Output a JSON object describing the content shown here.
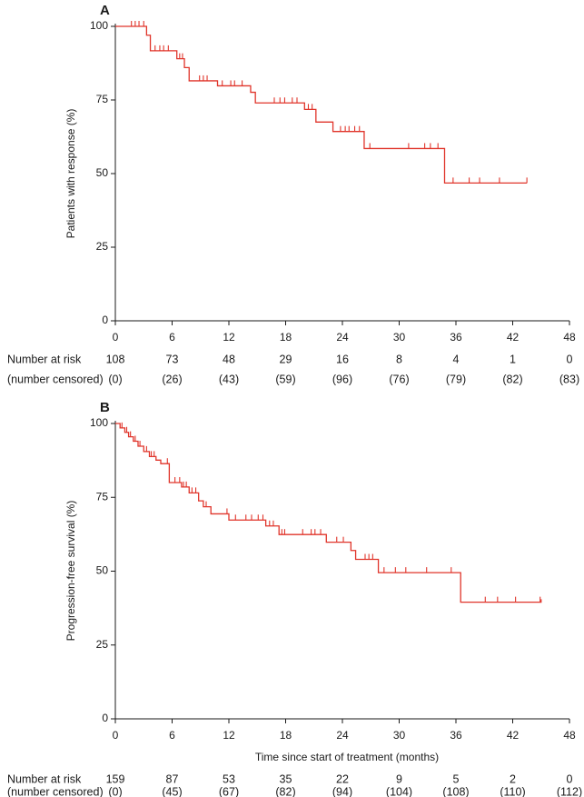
{
  "colors": {
    "curve": "#e0342a",
    "axis": "#1a1a1a"
  },
  "chart_data": [
    {
      "type": "line",
      "panel_label": "A",
      "ylabel": "Patients with response (%)",
      "xlabel": "",
      "xlim": [
        0,
        48
      ],
      "ylim": [
        0,
        100
      ],
      "x_ticks": [
        "0",
        "6",
        "12",
        "18",
        "24",
        "30",
        "36",
        "42",
        "48"
      ],
      "y_ticks": [
        "0",
        "25",
        "50",
        "75",
        "100"
      ],
      "series": [
        {
          "step": [
            [
              0,
              100
            ],
            [
              3.3,
              100
            ],
            [
              3.3,
              97
            ],
            [
              3.7,
              97
            ],
            [
              3.7,
              91.7
            ],
            [
              6.5,
              91.7
            ],
            [
              6.5,
              89
            ],
            [
              7.3,
              89
            ],
            [
              7.3,
              86
            ],
            [
              7.8,
              86
            ],
            [
              7.8,
              81.5
            ],
            [
              10.8,
              81.5
            ],
            [
              10.8,
              79.8
            ],
            [
              14.3,
              79.8
            ],
            [
              14.3,
              77.6
            ],
            [
              14.8,
              77.6
            ],
            [
              14.8,
              74
            ],
            [
              20,
              74
            ],
            [
              20,
              71.8
            ],
            [
              21.2,
              71.8
            ],
            [
              21.2,
              67.5
            ],
            [
              23,
              67.5
            ],
            [
              23,
              64.3
            ],
            [
              26.3,
              64.3
            ],
            [
              26.3,
              58.5
            ],
            [
              34.8,
              58.5
            ],
            [
              34.8,
              46.8
            ],
            [
              43.5,
              46.8
            ]
          ],
          "censored": [
            1.7,
            2.1,
            2.5,
            3,
            4.2,
            4.7,
            5.1,
            5.6,
            6.8,
            7.1,
            8.9,
            9.3,
            9.7,
            11.3,
            12.2,
            12.6,
            13.4,
            16.8,
            17.4,
            17.9,
            18.7,
            19.2,
            20.4,
            20.8,
            23.8,
            24.3,
            24.7,
            25.3,
            25.8,
            26.9,
            31,
            32.7,
            33.3,
            34.1,
            35.7,
            37.4,
            38.5,
            40.6,
            43.5
          ]
        }
      ],
      "risk_table": {
        "row1_label": "Number at risk",
        "row2_label": "(number censored)",
        "at_risk": [
          "108",
          "73",
          "48",
          "29",
          "16",
          "8",
          "4",
          "1",
          "0"
        ],
        "censored": [
          "(0)",
          "(26)",
          "(43)",
          "(59)",
          "(96)",
          "(76)",
          "(79)",
          "(82)",
          "(83)"
        ]
      }
    },
    {
      "type": "line",
      "panel_label": "B",
      "ylabel": "Progression-free survival (%)",
      "xlabel": "Time since start of treatment (months)",
      "xlim": [
        0,
        48
      ],
      "ylim": [
        0,
        100
      ],
      "x_ticks": [
        "0",
        "6",
        "12",
        "18",
        "24",
        "30",
        "36",
        "42",
        "48"
      ],
      "y_ticks": [
        "0",
        "25",
        "50",
        "75",
        "100"
      ],
      "series": [
        {
          "step": [
            [
              0,
              100
            ],
            [
              0.5,
              100
            ],
            [
              0.5,
              98.5
            ],
            [
              1,
              98.5
            ],
            [
              1,
              97
            ],
            [
              1.4,
              97
            ],
            [
              1.4,
              95.5
            ],
            [
              1.9,
              95.5
            ],
            [
              1.9,
              94
            ],
            [
              2.4,
              94
            ],
            [
              2.4,
              92.3
            ],
            [
              3,
              92.3
            ],
            [
              3,
              90.5
            ],
            [
              3.6,
              90.5
            ],
            [
              3.6,
              88.8
            ],
            [
              4.3,
              88.8
            ],
            [
              4.3,
              87.6
            ],
            [
              4.8,
              87.6
            ],
            [
              4.8,
              86.4
            ],
            [
              5.7,
              86.4
            ],
            [
              5.7,
              80
            ],
            [
              7,
              80
            ],
            [
              7,
              78.5
            ],
            [
              7.8,
              78.5
            ],
            [
              7.8,
              76.5
            ],
            [
              8.8,
              76.5
            ],
            [
              8.8,
              73.8
            ],
            [
              9.3,
              73.8
            ],
            [
              9.3,
              71.8
            ],
            [
              10.1,
              71.8
            ],
            [
              10.1,
              69.4
            ],
            [
              12,
              69.4
            ],
            [
              12,
              67.3
            ],
            [
              15.9,
              67.3
            ],
            [
              15.9,
              65.3
            ],
            [
              17.3,
              65.3
            ],
            [
              17.3,
              62.4
            ],
            [
              22.3,
              62.4
            ],
            [
              22.3,
              59.8
            ],
            [
              24.9,
              59.8
            ],
            [
              24.9,
              57
            ],
            [
              25.4,
              57
            ],
            [
              25.4,
              54
            ],
            [
              27.8,
              54
            ],
            [
              27.8,
              49.5
            ],
            [
              36.5,
              49.5
            ],
            [
              36.5,
              39.5
            ],
            [
              45,
              39.5
            ],
            [
              45,
              40.5
            ]
          ],
          "censored": [
            0.7,
            1.2,
            1.6,
            2.1,
            2.6,
            3.3,
            3.8,
            4.1,
            5.5,
            6.3,
            6.8,
            7.2,
            7.5,
            8.1,
            8.5,
            9.6,
            11.8,
            12.7,
            13.8,
            14.4,
            15.1,
            15.6,
            16.3,
            16.7,
            17.6,
            17.9,
            19.8,
            20.7,
            21.1,
            21.7,
            23.4,
            24.1,
            26.4,
            26.8,
            27.2,
            28.4,
            29.6,
            30.7,
            32.9,
            35.5,
            39.1,
            40.4,
            42.3,
            44.9
          ]
        }
      ],
      "risk_table": {
        "row1_label": "Number at risk",
        "row2_label": "(number censored)",
        "at_risk": [
          "159",
          "87",
          "53",
          "35",
          "22",
          "9",
          "5",
          "2",
          "0"
        ],
        "censored": [
          "(0)",
          "(45)",
          "(67)",
          "(82)",
          "(94)",
          "(104)",
          "(108)",
          "(110)",
          "(112)"
        ]
      }
    }
  ]
}
